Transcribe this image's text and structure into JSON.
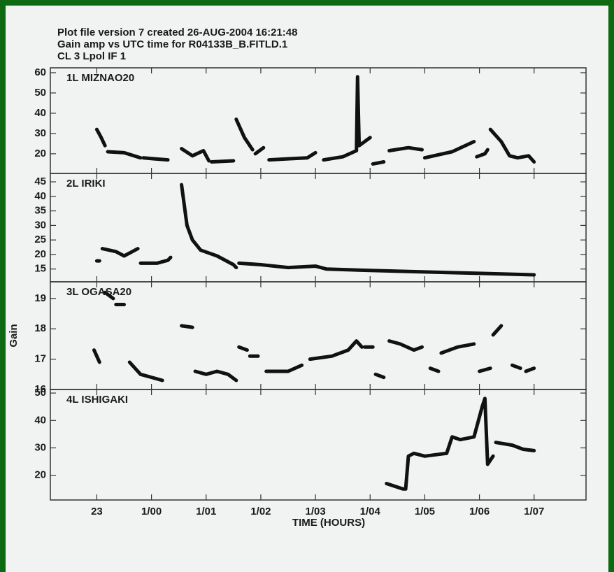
{
  "title": [
    "Plot file version 7  created 26-AUG-2004 16:21:48",
    "Gain amp vs UTC time for R04133B_B.FITLD.1",
    "CL 3  Lpol  IF 1"
  ],
  "ylabel": "Gain",
  "xlabel": "TIME (HOURS)",
  "chart_data": [
    {
      "type": "line",
      "title": "1L MIZNAO20",
      "color": "#111111",
      "xlim": [
        22.15,
        31.95
      ],
      "xticks": [
        23,
        {
          "value": 24,
          "label": "1/00"
        },
        {
          "value": 25,
          "label": "1/01"
        },
        {
          "value": 26,
          "label": "1/02"
        },
        {
          "value": 27,
          "label": "1/03"
        },
        {
          "value": 28,
          "label": "1/04"
        },
        {
          "value": 29,
          "label": "1/05"
        },
        {
          "value": 30,
          "label": "1/06"
        },
        {
          "value": 31,
          "label": "1/07"
        }
      ],
      "ylim": [
        10.3,
        62.4
      ],
      "yticks": [
        20,
        30,
        40,
        50,
        60
      ],
      "x": [
        23.0,
        23.08,
        23.15,
        null,
        23.2,
        23.5,
        23.8,
        null,
        23.85,
        24.05,
        24.3,
        null,
        24.55,
        24.75,
        24.95,
        25.05,
        null,
        25.1,
        25.5,
        null,
        25.55,
        25.7,
        25.85,
        null,
        25.9,
        26.05,
        null,
        26.15,
        26.5,
        26.85,
        27.0,
        null,
        27.15,
        27.5,
        27.75,
        27.77,
        27.8,
        28.0,
        null,
        28.05,
        28.25,
        null,
        28.35,
        28.7,
        28.95,
        null,
        29.0,
        29.5,
        29.9,
        null,
        29.95,
        30.1,
        30.15,
        null,
        30.2,
        30.4,
        30.55,
        30.7,
        30.9,
        31.0
      ],
      "values": [
        32,
        28,
        24,
        null,
        21,
        20.5,
        18,
        null,
        18,
        17.5,
        17,
        null,
        22.5,
        19,
        21.5,
        16.5,
        null,
        16,
        16.5,
        null,
        37,
        28,
        22,
        null,
        20,
        23,
        null,
        17,
        17.5,
        18,
        20.5,
        null,
        17,
        18.5,
        21.5,
        58,
        24,
        28,
        null,
        15,
        16,
        null,
        21.5,
        23,
        22,
        null,
        18,
        21,
        26,
        null,
        18.5,
        20,
        22,
        null,
        32,
        26,
        19,
        18,
        19,
        16
      ]
    },
    {
      "type": "line",
      "title": "2L IRIKI",
      "color": "#111111",
      "xlim": [
        22.15,
        31.95
      ],
      "xticks": [
        23,
        {
          "value": 24,
          "label": "1/00"
        },
        {
          "value": 25,
          "label": "1/01"
        },
        {
          "value": 26,
          "label": "1/02"
        },
        {
          "value": 27,
          "label": "1/03"
        },
        {
          "value": 28,
          "label": "1/04"
        },
        {
          "value": 29,
          "label": "1/05"
        },
        {
          "value": 30,
          "label": "1/06"
        },
        {
          "value": 31,
          "label": "1/07"
        }
      ],
      "ylim": [
        10.6,
        47.9
      ],
      "yticks": [
        15,
        20,
        25,
        30,
        35,
        40,
        45
      ],
      "x": [
        23.0,
        23.05,
        null,
        23.1,
        23.35,
        23.5,
        23.65,
        23.75,
        null,
        23.8,
        24.1,
        24.3,
        24.35,
        null,
        24.55,
        24.6,
        24.65,
        24.75,
        24.9,
        25.2,
        25.5,
        25.55,
        null,
        25.6,
        26.0,
        26.5,
        27.0,
        27.2,
        28.0,
        29.0,
        30.0,
        31.0
      ],
      "values": [
        17.8,
        17.8,
        null,
        22,
        21,
        19.5,
        21,
        22,
        null,
        17,
        17,
        18,
        19,
        null,
        44,
        37,
        30,
        25,
        21.5,
        19.5,
        16.5,
        15.5,
        null,
        17,
        16.5,
        15.5,
        16,
        15,
        14.5,
        14,
        13.5,
        13
      ]
    },
    {
      "type": "line",
      "title": "3L OGASA20",
      "color": "#111111",
      "xlim": [
        22.15,
        31.95
      ],
      "xticks": [
        23,
        {
          "value": 24,
          "label": "1/00"
        },
        {
          "value": 25,
          "label": "1/01"
        },
        {
          "value": 26,
          "label": "1/02"
        },
        {
          "value": 27,
          "label": "1/03"
        },
        {
          "value": 28,
          "label": "1/04"
        },
        {
          "value": 29,
          "label": "1/05"
        },
        {
          "value": 30,
          "label": "1/06"
        },
        {
          "value": 31,
          "label": "1/07"
        }
      ],
      "ylim": [
        16.0,
        19.55
      ],
      "yticks": [
        16,
        17,
        18,
        19
      ],
      "x": [
        22.95,
        23.05,
        null,
        23.15,
        23.3,
        null,
        23.35,
        23.5,
        null,
        23.6,
        23.8,
        24.0,
        24.2,
        null,
        24.55,
        24.75,
        null,
        24.8,
        25.0,
        25.2,
        25.4,
        25.55,
        null,
        25.6,
        25.75,
        null,
        25.8,
        25.95,
        null,
        26.1,
        26.5,
        26.75,
        null,
        26.9,
        27.3,
        27.6,
        27.75,
        27.85,
        null,
        27.9,
        28.05,
        null,
        28.1,
        28.25,
        null,
        28.35,
        28.55,
        28.8,
        28.95,
        null,
        29.1,
        29.25,
        null,
        29.3,
        29.6,
        29.9,
        null,
        30.0,
        30.2,
        null,
        30.25,
        30.4,
        null,
        30.6,
        30.75,
        null,
        30.85,
        31.0
      ],
      "values": [
        17.3,
        16.9,
        null,
        19.2,
        19.0,
        null,
        18.8,
        18.8,
        null,
        16.9,
        16.5,
        16.4,
        16.3,
        null,
        18.1,
        18.05,
        null,
        16.6,
        16.5,
        16.6,
        16.5,
        16.3,
        null,
        17.4,
        17.3,
        null,
        17.1,
        17.1,
        null,
        16.6,
        16.6,
        16.8,
        null,
        17.0,
        17.1,
        17.3,
        17.6,
        17.4,
        null,
        17.4,
        17.4,
        null,
        16.5,
        16.4,
        null,
        17.6,
        17.5,
        17.3,
        17.4,
        null,
        16.7,
        16.6,
        null,
        17.2,
        17.4,
        17.5,
        null,
        16.6,
        16.7,
        null,
        17.8,
        18.1,
        null,
        16.8,
        16.7,
        null,
        16.6,
        16.7
      ]
    },
    {
      "type": "line",
      "title": "4L ISHIGAKI",
      "color": "#111111",
      "xlim": [
        22.15,
        31.95
      ],
      "xticks": [
        23,
        {
          "value": 24,
          "label": "1/00"
        },
        {
          "value": 25,
          "label": "1/01"
        },
        {
          "value": 26,
          "label": "1/02"
        },
        {
          "value": 27,
          "label": "1/03"
        },
        {
          "value": 28,
          "label": "1/04"
        },
        {
          "value": 29,
          "label": "1/05"
        },
        {
          "value": 30,
          "label": "1/06"
        },
        {
          "value": 31,
          "label": "1/07"
        }
      ],
      "ylim": [
        11,
        51.3
      ],
      "yticks": [
        20,
        30,
        40,
        50
      ],
      "x": [
        28.3,
        28.6,
        28.65,
        28.7,
        28.8,
        29.0,
        29.4,
        29.5,
        29.65,
        29.9,
        30.05,
        30.1,
        30.15,
        30.25,
        null,
        30.3,
        30.6,
        30.8,
        31.0
      ],
      "values": [
        17,
        15,
        15,
        27,
        28,
        27,
        28,
        34,
        33,
        34,
        45,
        48,
        24,
        27,
        null,
        32,
        31,
        29.5,
        29
      ]
    }
  ]
}
